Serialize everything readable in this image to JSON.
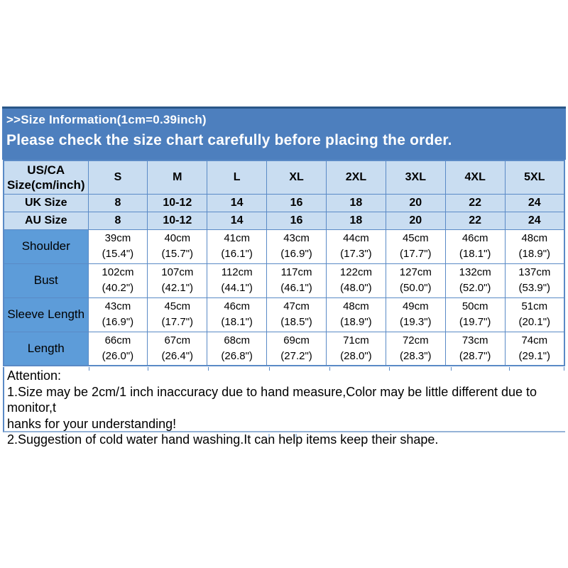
{
  "banner": {
    "line1": ">>Size Information(1cm=0.39inch)",
    "line2": "Please check the size chart carefully before placing the order."
  },
  "colors": {
    "banner_bg": "#4d7fbe",
    "banner_border": "#2a5788",
    "banner_text": "#ffffff",
    "header_bg": "#c9ddf1",
    "label_bg": "#5d9cd9",
    "grid_border": "#5a8ac6",
    "body_text": "#000000"
  },
  "size_table": {
    "corner_label_lines": [
      "US/CA",
      "Size(cm/inch)"
    ],
    "size_headers": [
      "S",
      "M",
      "L",
      "XL",
      "2XL",
      "3XL",
      "4XL",
      "5XL"
    ],
    "uk_row": {
      "label": "UK Size",
      "values": [
        "8",
        "10-12",
        "14",
        "16",
        "18",
        "20",
        "22",
        "24"
      ]
    },
    "au_row": {
      "label": "AU Size",
      "values": [
        "8",
        "10-12",
        "14",
        "16",
        "18",
        "20",
        "22",
        "24"
      ]
    },
    "measure_rows": [
      {
        "label": "Shoulder",
        "cm": [
          "39cm",
          "40cm",
          "41cm",
          "43cm",
          "44cm",
          "45cm",
          "46cm",
          "48cm"
        ],
        "inch": [
          "(15.4\")",
          "(15.7\")",
          "(16.1\")",
          "(16.9\")",
          "(17.3\")",
          "(17.7\")",
          "(18.1\")",
          "(18.9\")"
        ]
      },
      {
        "label": "Bust",
        "cm": [
          "102cm",
          "107cm",
          "112cm",
          "117cm",
          "122cm",
          "127cm",
          "132cm",
          "137cm"
        ],
        "inch": [
          "(40.2\")",
          "(42.1\")",
          "(44.1\")",
          "(46.1\")",
          "(48.0\")",
          "(50.0\")",
          "(52.0\")",
          "(53.9\")"
        ]
      },
      {
        "label": "Sleeve Length",
        "cm": [
          "43cm",
          "45cm",
          "46cm",
          "47cm",
          "48cm",
          "49cm",
          "50cm",
          "51cm"
        ],
        "inch": [
          "(16.9\")",
          "(17.7\")",
          "(18.1\")",
          "(18.5\")",
          "(18.9\")",
          "(19.3\")",
          "(19.7\")",
          "(20.1\")"
        ]
      },
      {
        "label": "Length",
        "cm": [
          "66cm",
          "67cm",
          "68cm",
          "69cm",
          "71cm",
          "72cm",
          "73cm",
          "74cm"
        ],
        "inch": [
          "(26.0\")",
          "(26.4\")",
          "(26.8\")",
          "(27.2\")",
          "(28.0\")",
          "(28.3\")",
          "(28.7\")",
          "(29.1\")"
        ]
      }
    ]
  },
  "attention": {
    "lines": [
      "Attention:",
      "1.Size may be 2cm/1 inch inaccuracy due to hand measure,Color may be little different due to monitor,t",
      "hanks for your understanding!",
      "2.Suggestion of cold water hand washing.It can help items keep their shape."
    ]
  }
}
